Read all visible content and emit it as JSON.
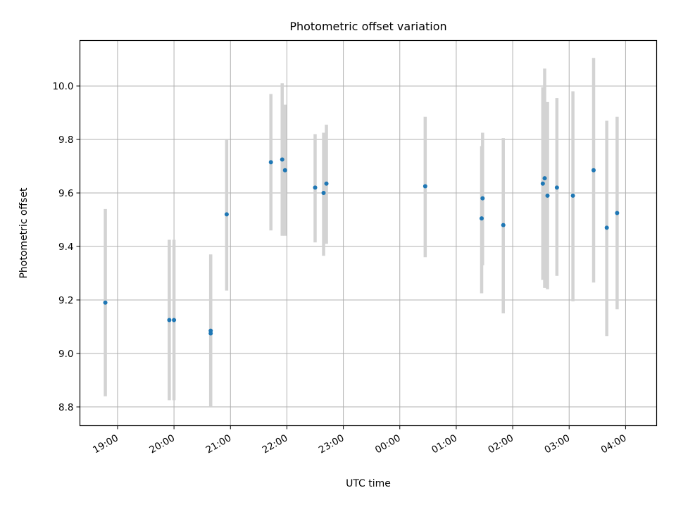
{
  "chart_data": {
    "type": "scatter",
    "title": "Photometric offset variation",
    "xlabel": "UTC time",
    "ylabel": "Photometric offset",
    "x_is_time": true,
    "xlim": [
      "18:20",
      "04:33"
    ],
    "ylim": [
      8.73,
      10.17
    ],
    "x_ticks": [
      "19:00",
      "20:00",
      "21:00",
      "22:00",
      "23:00",
      "00:00",
      "01:00",
      "02:00",
      "03:00",
      "04:00"
    ],
    "y_ticks": [
      8.8,
      9.0,
      9.2,
      9.4,
      9.6,
      9.8,
      10.0
    ],
    "y_tick_labels": [
      "8.8",
      "9.0",
      "9.2",
      "9.4",
      "9.6",
      "9.8",
      "10.0"
    ],
    "grid": true,
    "colors": {
      "point": "#1f77b4",
      "errorbar": "#d3d3d3",
      "grid": "#b0b0b0"
    },
    "points": [
      {
        "t": "18:47",
        "y": 9.19,
        "lo": 8.84,
        "hi": 9.54
      },
      {
        "t": "19:55",
        "y": 9.125,
        "lo": 8.825,
        "hi": 9.425
      },
      {
        "t": "20:00",
        "y": 9.125,
        "lo": 8.825,
        "hi": 9.425
      },
      {
        "t": "20:39",
        "y": 9.075,
        "lo": 8.8,
        "hi": 9.37
      },
      {
        "t": "20:39",
        "y": 9.085,
        "lo": 8.8,
        "hi": 9.37
      },
      {
        "t": "20:56",
        "y": 9.52,
        "lo": 9.235,
        "hi": 9.8
      },
      {
        "t": "21:43",
        "y": 9.715,
        "lo": 9.46,
        "hi": 9.97
      },
      {
        "t": "21:55",
        "y": 9.725,
        "lo": 9.44,
        "hi": 10.01
      },
      {
        "t": "21:58",
        "y": 9.685,
        "lo": 9.44,
        "hi": 9.93
      },
      {
        "t": "22:30",
        "y": 9.62,
        "lo": 9.415,
        "hi": 9.82
      },
      {
        "t": "22:39",
        "y": 9.6,
        "lo": 9.365,
        "hi": 9.825
      },
      {
        "t": "22:42",
        "y": 9.635,
        "lo": 9.41,
        "hi": 9.855
      },
      {
        "t": "00:27",
        "y": 9.625,
        "lo": 9.36,
        "hi": 9.885
      },
      {
        "t": "01:27",
        "y": 9.505,
        "lo": 9.225,
        "hi": 9.775
      },
      {
        "t": "01:28",
        "y": 9.58,
        "lo": 9.33,
        "hi": 9.825
      },
      {
        "t": "01:50",
        "y": 9.48,
        "lo": 9.15,
        "hi": 9.805
      },
      {
        "t": "02:32",
        "y": 9.635,
        "lo": 9.275,
        "hi": 9.995
      },
      {
        "t": "02:34",
        "y": 9.655,
        "lo": 9.245,
        "hi": 10.065
      },
      {
        "t": "02:37",
        "y": 9.59,
        "lo": 9.24,
        "hi": 9.94
      },
      {
        "t": "02:47",
        "y": 9.62,
        "lo": 9.29,
        "hi": 9.955
      },
      {
        "t": "03:04",
        "y": 9.59,
        "lo": 9.195,
        "hi": 9.98
      },
      {
        "t": "03:26",
        "y": 9.685,
        "lo": 9.265,
        "hi": 10.105
      },
      {
        "t": "03:40",
        "y": 9.47,
        "lo": 9.065,
        "hi": 9.87
      },
      {
        "t": "03:51",
        "y": 9.525,
        "lo": 9.165,
        "hi": 9.885
      }
    ]
  }
}
